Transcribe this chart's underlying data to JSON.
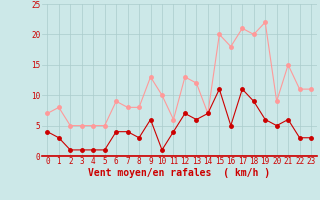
{
  "hours": [
    0,
    1,
    2,
    3,
    4,
    5,
    6,
    7,
    8,
    9,
    10,
    11,
    12,
    13,
    14,
    15,
    16,
    17,
    18,
    19,
    20,
    21,
    22,
    23
  ],
  "vent_moyen": [
    4,
    3,
    1,
    1,
    1,
    1,
    4,
    4,
    3,
    6,
    1,
    4,
    7,
    6,
    7,
    11,
    5,
    11,
    9,
    6,
    5,
    6,
    3,
    3
  ],
  "rafales": [
    7,
    8,
    5,
    5,
    5,
    5,
    9,
    8,
    8,
    13,
    10,
    6,
    13,
    12,
    7,
    20,
    18,
    21,
    20,
    22,
    9,
    15,
    11,
    11
  ],
  "moyen_color": "#cc0000",
  "rafales_color": "#ff9999",
  "bg_color": "#cce8e8",
  "grid_color": "#aacccc",
  "xlabel": "Vent moyen/en rafales  ( km/h )",
  "ylim": [
    0,
    25
  ],
  "xlim": [
    -0.5,
    23.5
  ],
  "yticks": [
    0,
    5,
    10,
    15,
    20,
    25
  ],
  "xticks": [
    0,
    1,
    2,
    3,
    4,
    5,
    6,
    7,
    8,
    9,
    10,
    11,
    12,
    13,
    14,
    15,
    16,
    17,
    18,
    19,
    20,
    21,
    22,
    23
  ],
  "tick_fontsize": 5.5,
  "xlabel_fontsize": 7,
  "marker_size": 2.5,
  "line_width": 0.8
}
